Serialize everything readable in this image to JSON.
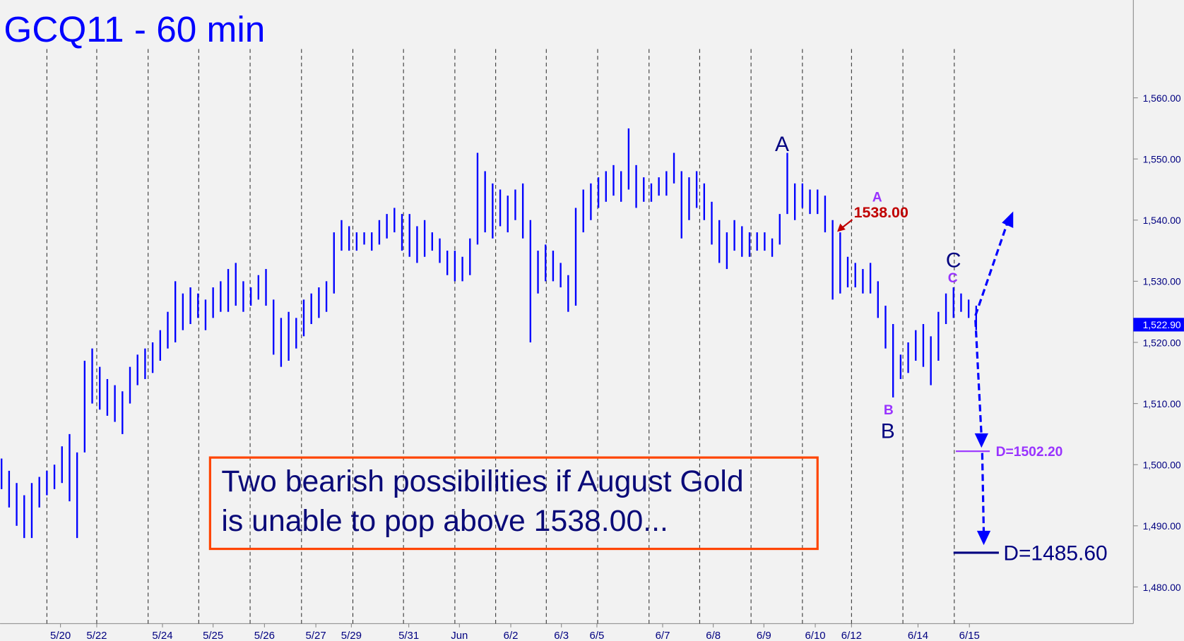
{
  "chart_data": {
    "type": "ohlc",
    "title": "GCQ11 - 60 min",
    "color": "#0000ff",
    "ylim": [
      1474,
      1576
    ],
    "yticks": [
      {
        "value": 1480,
        "label": "1,480.00"
      },
      {
        "value": 1490,
        "label": "1,490.00"
      },
      {
        "value": 1500,
        "label": "1,500.00"
      },
      {
        "value": 1510,
        "label": "1,510.00"
      },
      {
        "value": 1520,
        "label": "1,520.00"
      },
      {
        "value": 1530,
        "label": "1,530.00"
      },
      {
        "value": 1540,
        "label": "1,540.00"
      },
      {
        "value": 1550,
        "label": "1,550.00"
      },
      {
        "value": 1560,
        "label": "1,560.00"
      }
    ],
    "xlim": [
      0,
      150
    ],
    "xticks": [
      {
        "value": 8,
        "label": "5/20"
      },
      {
        "value": 12.8,
        "label": "5/22"
      },
      {
        "value": 21.5,
        "label": "5/24"
      },
      {
        "value": 28.2,
        "label": "5/25"
      },
      {
        "value": 35,
        "label": "5/26"
      },
      {
        "value": 41.8,
        "label": "5/27"
      },
      {
        "value": 46.5,
        "label": "5/29"
      },
      {
        "value": 54.1,
        "label": "5/31"
      },
      {
        "value": 60.8,
        "label": "Jun"
      },
      {
        "value": 67.6,
        "label": "6/2"
      },
      {
        "value": 74.3,
        "label": "6/3"
      },
      {
        "value": 79,
        "label": "6/5"
      },
      {
        "value": 87.7,
        "label": "6/7"
      },
      {
        "value": 94.4,
        "label": "6/8"
      },
      {
        "value": 101.1,
        "label": "6/9"
      },
      {
        "value": 107.9,
        "label": "6/10"
      },
      {
        "value": 112.7,
        "label": "6/12"
      },
      {
        "value": 121.5,
        "label": "6/14"
      },
      {
        "value": 128.3,
        "label": "6/15"
      }
    ],
    "session_breaks": [
      6.2,
      12.8,
      19.6,
      26.3,
      33.1,
      39.9,
      46.7,
      53.4,
      60.2,
      65.6,
      72.3,
      79.1,
      85.9,
      92.6,
      99.4,
      106.2,
      112.7,
      119.5,
      126.3
    ],
    "high": [
      1501,
      1499,
      1497,
      1495,
      1497,
      1498,
      1499,
      1500,
      1503,
      1505,
      1502,
      1517,
      1519,
      1516,
      1514,
      1513,
      1512,
      1516,
      1518,
      1519,
      1520,
      1522,
      1525,
      1530,
      1528,
      1529,
      1528,
      1527,
      1529,
      1530,
      1532,
      1533,
      1530,
      1529,
      1531,
      1532,
      1527,
      1524,
      1525,
      1524,
      1527,
      1528,
      1529,
      1530,
      1538,
      1540,
      1539,
      1538,
      1538,
      1538,
      1540,
      1541,
      1542,
      1541,
      1541,
      1539,
      1540,
      1538,
      1537,
      1535,
      1535,
      1534,
      1537,
      1551,
      1548,
      1546,
      1545,
      1544,
      1545,
      1546,
      1540,
      1535,
      1536,
      1535,
      1533,
      1531,
      1542,
      1545,
      1546,
      1547,
      1548,
      1549,
      1548,
      1555,
      1549,
      1547,
      1546,
      1547,
      1548,
      1551,
      1548,
      1547,
      1548,
      1546,
      1543,
      1540,
      1538,
      1540,
      1539,
      1538,
      1538,
      1538,
      1537,
      1541,
      1551,
      1546,
      1546,
      1545,
      1545,
      1544,
      1540,
      1538,
      1534,
      1533,
      1532,
      1533,
      1530,
      1526,
      1523,
      1518,
      1520,
      1522,
      1523,
      1521,
      1525,
      1528,
      1529,
      1528,
      1527,
      1526
    ],
    "low": [
      1496,
      1493,
      1490,
      1488,
      1488,
      1493,
      1495,
      1496,
      1497,
      1494,
      1488,
      1502,
      1510,
      1509,
      1508,
      1507,
      1505,
      1510,
      1513,
      1514,
      1515,
      1517,
      1519,
      1520,
      1522,
      1523,
      1524,
      1522,
      1524,
      1525,
      1525,
      1526,
      1525,
      1526,
      1527,
      1526,
      1518,
      1516,
      1517,
      1519,
      1521,
      1523,
      1524,
      1525,
      1528,
      1535,
      1535,
      1535,
      1536,
      1535,
      1536,
      1537,
      1538,
      1535,
      1534,
      1533,
      1534,
      1535,
      1533,
      1531,
      1530,
      1530,
      1531,
      1536,
      1538,
      1537,
      1539,
      1538,
      1540,
      1537,
      1520,
      1528,
      1530,
      1530,
      1529,
      1525,
      1526,
      1538,
      1540,
      1542,
      1543,
      1544,
      1543,
      1545,
      1542,
      1543,
      1543,
      1544,
      1544,
      1546,
      1537,
      1540,
      1542,
      1540,
      1536,
      1533,
      1532,
      1535,
      1534,
      1534,
      1535,
      1535,
      1534,
      1536,
      1541,
      1540,
      1542,
      1541,
      1541,
      1538,
      1527,
      1528,
      1529,
      1529,
      1528,
      1528,
      1524,
      1519,
      1511,
      1514,
      1515,
      1517,
      1516,
      1513,
      1517,
      1523,
      1524,
      1525,
      1524,
      1522
    ],
    "last_price": {
      "value": 1522.9,
      "label": "1,522.90"
    },
    "wave_labels": [
      "A",
      "A",
      "B",
      "B",
      "C",
      "C"
    ],
    "price_note": "1538.00",
    "targets": [
      {
        "label": "D=1502.20",
        "value": 1502.2,
        "color": "#9933ff"
      },
      {
        "label": "D=1485.60",
        "value": 1485.6,
        "color": "#000080"
      }
    ],
    "note_lines": [
      "Two bearish possibilities if August Gold",
      "is unable to pop above 1538.00..."
    ]
  }
}
